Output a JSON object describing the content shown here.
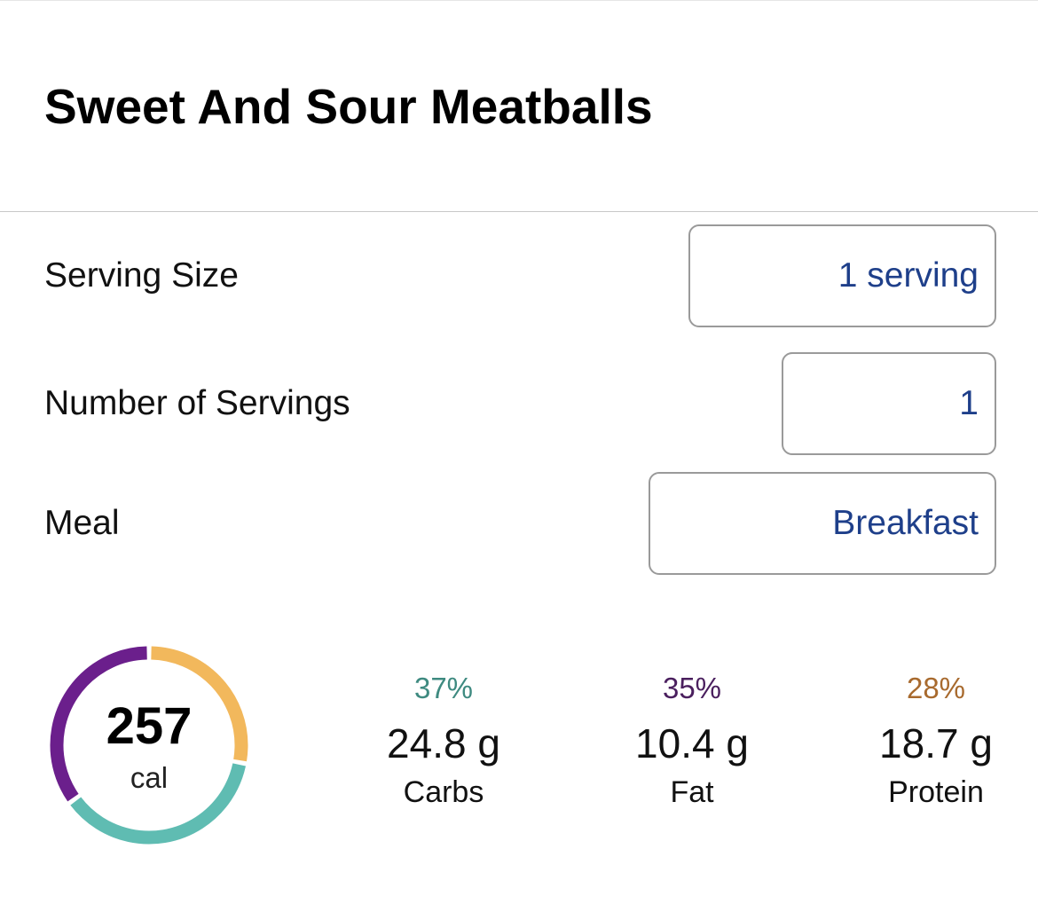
{
  "title": "Sweet And Sour Meatballs",
  "fields": {
    "serving_size": {
      "label": "Serving Size",
      "value": "1 serving"
    },
    "number_of_servings": {
      "label": "Number of Servings",
      "value": "1"
    },
    "meal": {
      "label": "Meal",
      "value": "Breakfast"
    }
  },
  "calories": {
    "value": "257",
    "unit": "cal"
  },
  "macros": {
    "carbs": {
      "percent": "37%",
      "grams": "24.8 g",
      "label": "Carbs",
      "color": "#5fbcb2",
      "pct_color": "#3e8a80",
      "fraction": 0.37
    },
    "fat": {
      "percent": "35%",
      "grams": "10.4 g",
      "label": "Fat",
      "color": "#6b1f8c",
      "pct_color": "#4a1f5e",
      "fraction": 0.35
    },
    "protein": {
      "percent": "28%",
      "grams": "18.7 g",
      "label": "Protein",
      "color": "#f2b85c",
      "pct_color": "#a86a2e",
      "fraction": 0.28
    }
  }
}
